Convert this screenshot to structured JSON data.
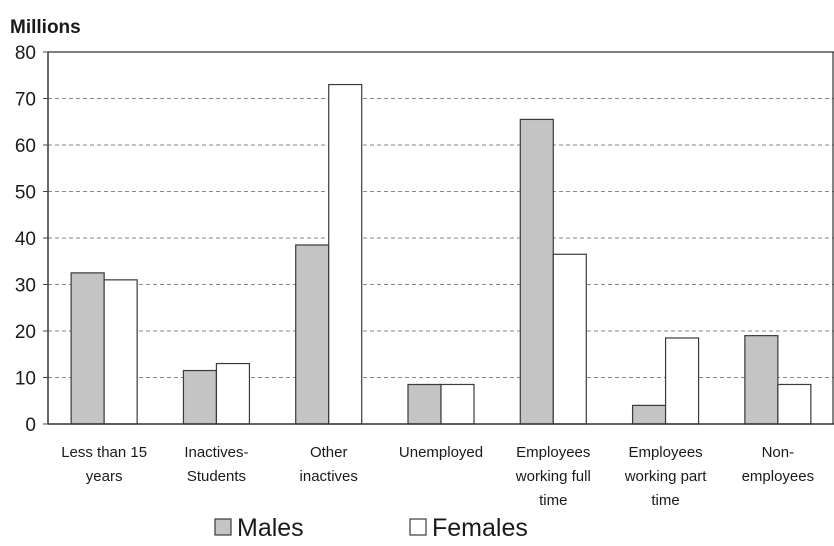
{
  "chart_data": {
    "type": "bar",
    "title": "",
    "ylabel": "Millions",
    "xlabel": "",
    "ylim": [
      0,
      80
    ],
    "yticks": [
      0,
      10,
      20,
      30,
      40,
      50,
      60,
      70,
      80
    ],
    "grid": true,
    "legend_position": "bottom",
    "categories": [
      [
        "Less than 15",
        "years"
      ],
      [
        "Inactives-",
        "Students"
      ],
      [
        "Other",
        "inactives"
      ],
      [
        "Unemployed"
      ],
      [
        "Employees",
        "working full",
        "time"
      ],
      [
        "Employees",
        "working part",
        "time"
      ],
      [
        "Non-",
        "employees"
      ]
    ],
    "series": [
      {
        "name": "Males",
        "color": "#c4c4c4",
        "values": [
          32.5,
          11.5,
          38.5,
          8.5,
          65.5,
          4,
          19
        ]
      },
      {
        "name": "Females",
        "color": "#ffffff",
        "values": [
          31,
          13,
          73,
          8.5,
          36.5,
          18.5,
          8.5
        ]
      }
    ]
  }
}
